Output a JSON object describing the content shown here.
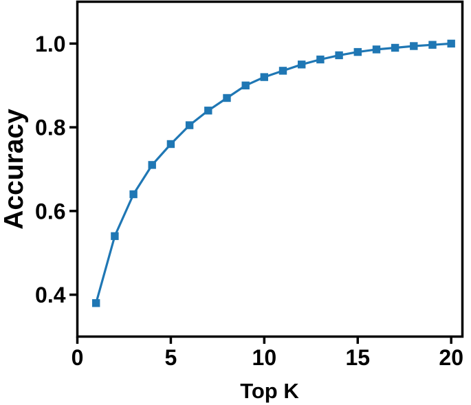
{
  "figure": {
    "xlabel": "Top K",
    "ylabel": "Accuracy",
    "line_color": "#1f77b4",
    "axis_color": "#000000",
    "background_color": "#ffffff"
  },
  "chart_data": {
    "type": "line",
    "title": "",
    "xlabel": "Top K",
    "ylabel": "Accuracy",
    "x": [
      1,
      2,
      3,
      4,
      5,
      6,
      7,
      8,
      9,
      10,
      11,
      12,
      13,
      14,
      15,
      16,
      17,
      18,
      19,
      20
    ],
    "series": [
      {
        "name": "accuracy",
        "marker": "square",
        "color": "#1f77b4",
        "values": [
          0.38,
          0.54,
          0.64,
          0.71,
          0.76,
          0.805,
          0.84,
          0.87,
          0.9,
          0.92,
          0.935,
          0.95,
          0.962,
          0.972,
          0.98,
          0.986,
          0.99,
          0.994,
          0.997,
          1.0
        ]
      }
    ],
    "xlim": [
      0,
      20.6
    ],
    "ylim": [
      0.3,
      1.1
    ],
    "xticks": [
      0,
      5,
      10,
      15,
      20
    ],
    "xtick_labels": [
      "0",
      "5",
      "10",
      "15",
      "20"
    ],
    "yticks": [
      0.4,
      0.6,
      0.8,
      1.0
    ],
    "ytick_labels": [
      "0.4",
      "0.6",
      "0.8",
      "1.0"
    ],
    "grid": false,
    "legend_position": "none"
  }
}
